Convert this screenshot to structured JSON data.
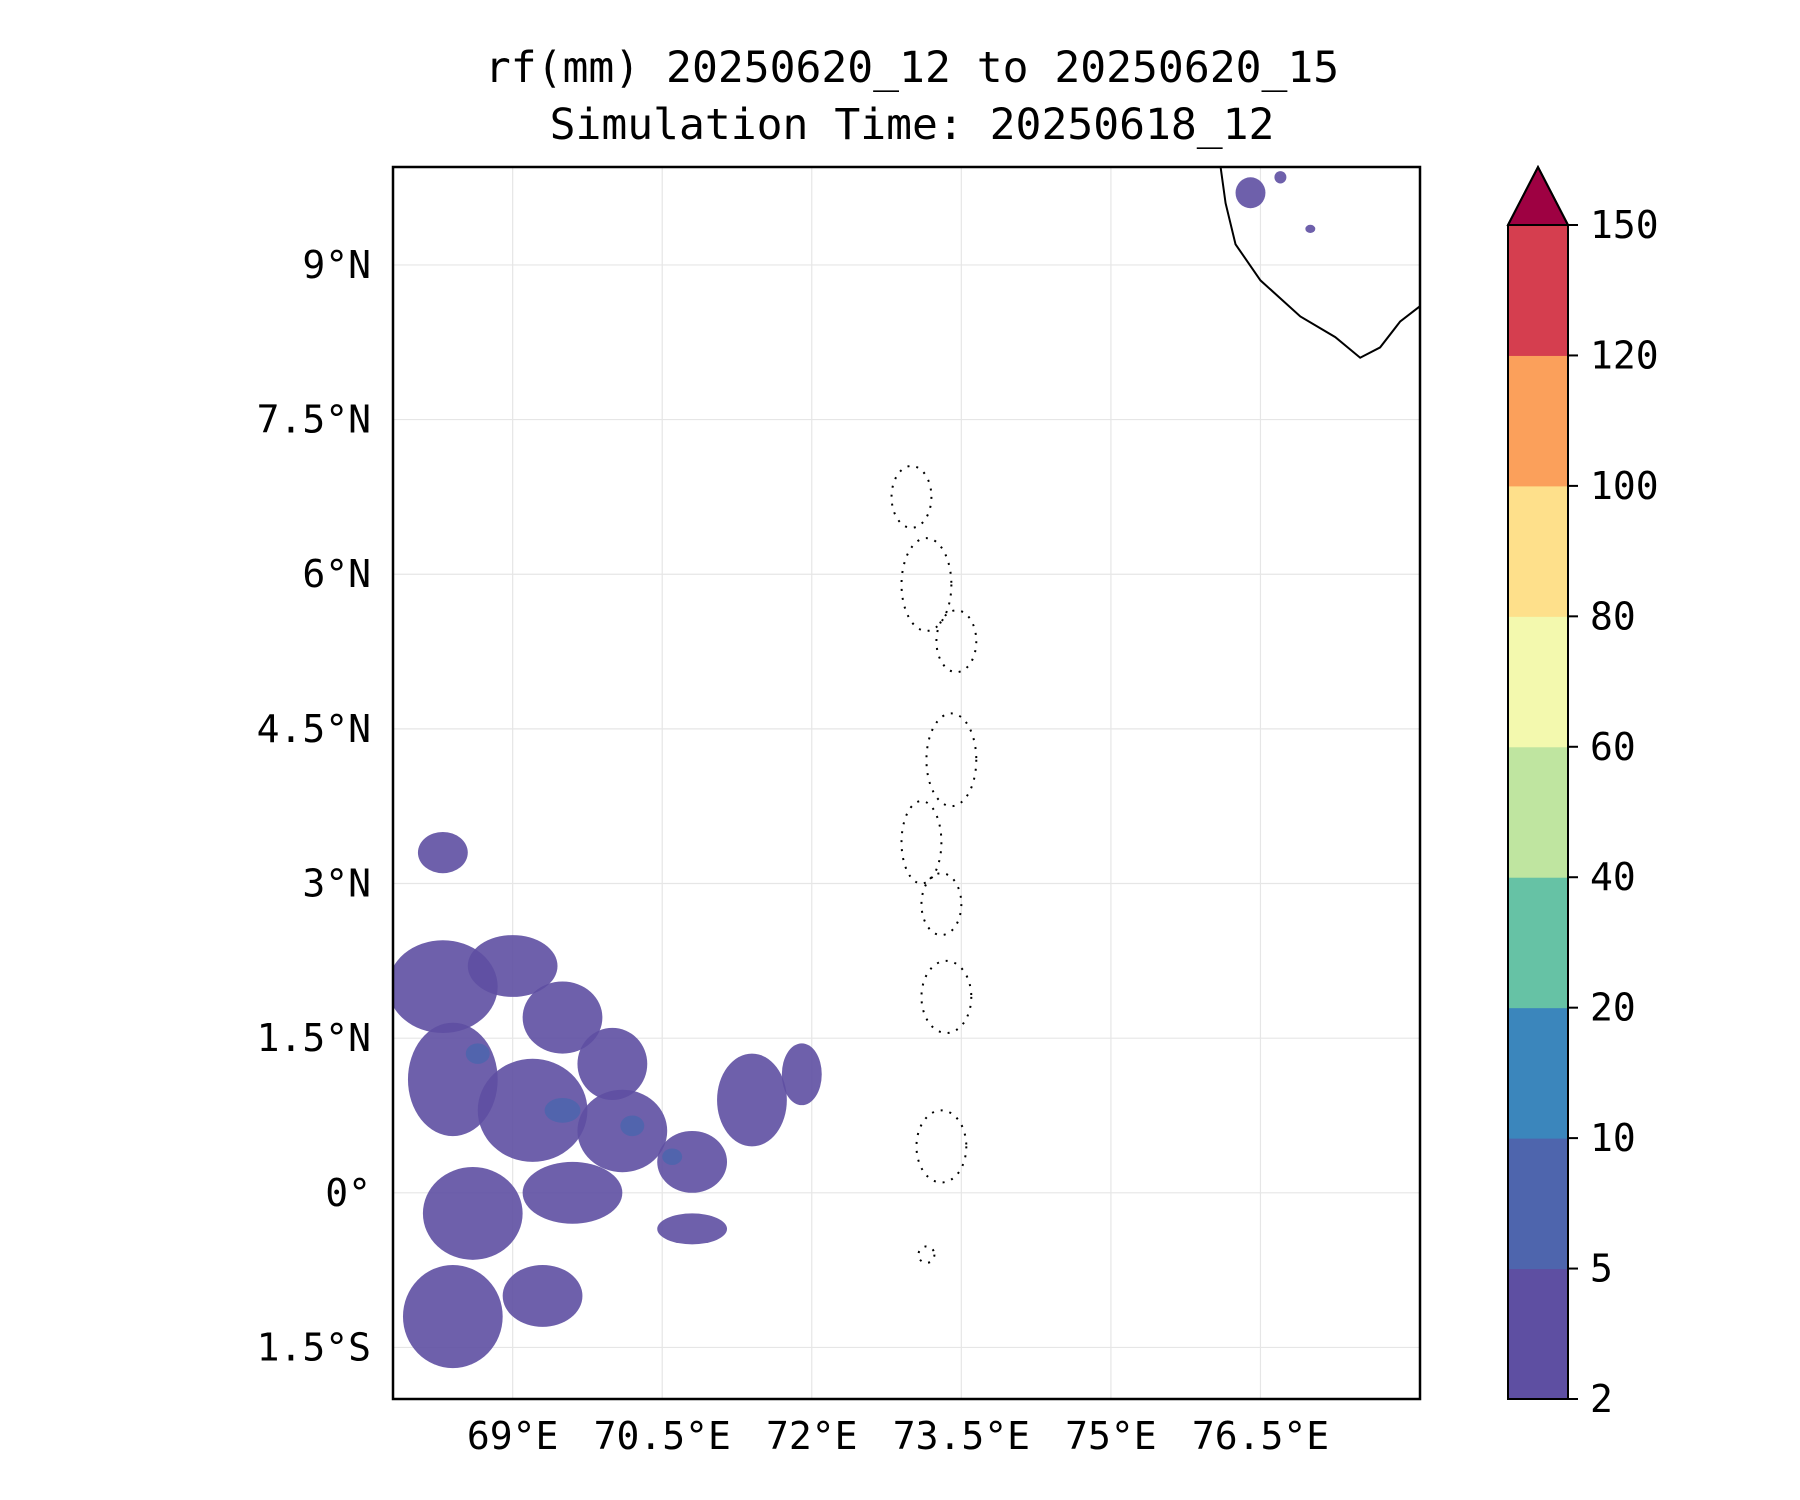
{
  "title": {
    "line1": "rf(mm) 20250620_12 to 20250620_15",
    "line2": "Simulation Time: 20250618_12"
  },
  "map": {
    "lon_range": [
      67.8,
      78.1
    ],
    "lat_range": [
      -2.0,
      9.95
    ],
    "x_ticks": [
      {
        "value": 69.0,
        "label": "69°E"
      },
      {
        "value": 70.5,
        "label": "70.5°E"
      },
      {
        "value": 72.0,
        "label": "72°E"
      },
      {
        "value": 73.5,
        "label": "73.5°E"
      },
      {
        "value": 75.0,
        "label": "75°E"
      },
      {
        "value": 76.5,
        "label": "76.5°E"
      }
    ],
    "y_ticks": [
      {
        "value": 9.0,
        "label": "9°N"
      },
      {
        "value": 7.5,
        "label": "7.5°N"
      },
      {
        "value": 6.0,
        "label": "6°N"
      },
      {
        "value": 4.5,
        "label": "4.5°N"
      },
      {
        "value": 3.0,
        "label": "3°N"
      },
      {
        "value": 1.5,
        "label": "1.5°N"
      },
      {
        "value": 0.0,
        "label": "0°"
      },
      {
        "value": -1.5,
        "label": "1.5°S"
      }
    ],
    "grid": true,
    "coastline_india": [
      [
        76.1,
        9.95
      ],
      [
        76.15,
        9.6
      ],
      [
        76.25,
        9.2
      ],
      [
        76.5,
        8.85
      ],
      [
        76.9,
        8.5
      ],
      [
        77.25,
        8.3
      ],
      [
        77.5,
        8.1
      ],
      [
        77.7,
        8.2
      ],
      [
        77.9,
        8.45
      ],
      [
        78.1,
        8.6
      ]
    ],
    "maldives_atolls": [
      {
        "lon": 73.0,
        "lat": 6.75,
        "rx": 0.2,
        "ry": 0.3
      },
      {
        "lon": 73.15,
        "lat": 5.9,
        "rx": 0.25,
        "ry": 0.45
      },
      {
        "lon": 73.45,
        "lat": 5.35,
        "rx": 0.2,
        "ry": 0.3
      },
      {
        "lon": 73.4,
        "lat": 4.2,
        "rx": 0.25,
        "ry": 0.45
      },
      {
        "lon": 73.1,
        "lat": 3.4,
        "rx": 0.2,
        "ry": 0.4
      },
      {
        "lon": 73.3,
        "lat": 2.8,
        "rx": 0.2,
        "ry": 0.3
      },
      {
        "lon": 73.35,
        "lat": 1.9,
        "rx": 0.25,
        "ry": 0.35
      },
      {
        "lon": 73.3,
        "lat": 0.45,
        "rx": 0.25,
        "ry": 0.35
      },
      {
        "lon": 73.15,
        "lat": -0.6,
        "rx": 0.08,
        "ry": 0.08
      }
    ],
    "rain_cells": [
      {
        "lon": 68.3,
        "lat": 2.0,
        "rx": 0.55,
        "ry": 0.45,
        "level": 1
      },
      {
        "lon": 69.0,
        "lat": 2.2,
        "rx": 0.45,
        "ry": 0.3,
        "level": 1
      },
      {
        "lon": 69.5,
        "lat": 1.7,
        "rx": 0.4,
        "ry": 0.35,
        "level": 1
      },
      {
        "lon": 70.0,
        "lat": 1.25,
        "rx": 0.35,
        "ry": 0.35,
        "level": 1
      },
      {
        "lon": 68.4,
        "lat": 1.1,
        "rx": 0.45,
        "ry": 0.55,
        "level": 1
      },
      {
        "lon": 69.2,
        "lat": 0.8,
        "rx": 0.55,
        "ry": 0.5,
        "level": 1
      },
      {
        "lon": 70.1,
        "lat": 0.6,
        "rx": 0.45,
        "ry": 0.4,
        "level": 1
      },
      {
        "lon": 70.8,
        "lat": 0.3,
        "rx": 0.35,
        "ry": 0.3,
        "level": 1
      },
      {
        "lon": 71.4,
        "lat": 0.9,
        "rx": 0.35,
        "ry": 0.45,
        "level": 1
      },
      {
        "lon": 71.9,
        "lat": 1.15,
        "rx": 0.2,
        "ry": 0.3,
        "level": 1
      },
      {
        "lon": 68.6,
        "lat": -0.2,
        "rx": 0.5,
        "ry": 0.45,
        "level": 1
      },
      {
        "lon": 69.6,
        "lat": 0.0,
        "rx": 0.5,
        "ry": 0.3,
        "level": 1
      },
      {
        "lon": 68.4,
        "lat": -1.2,
        "rx": 0.5,
        "ry": 0.5,
        "level": 1
      },
      {
        "lon": 69.3,
        "lat": -1.0,
        "rx": 0.4,
        "ry": 0.3,
        "level": 1
      },
      {
        "lon": 70.8,
        "lat": -0.35,
        "rx": 0.35,
        "ry": 0.15,
        "level": 1
      },
      {
        "lon": 68.3,
        "lat": 3.3,
        "rx": 0.25,
        "ry": 0.2,
        "level": 1
      },
      {
        "lon": 68.65,
        "lat": 1.35,
        "rx": 0.12,
        "ry": 0.1,
        "level": 2
      },
      {
        "lon": 69.5,
        "lat": 0.8,
        "rx": 0.18,
        "ry": 0.12,
        "level": 2
      },
      {
        "lon": 70.2,
        "lat": 0.65,
        "rx": 0.12,
        "ry": 0.1,
        "level": 2
      },
      {
        "lon": 70.6,
        "lat": 0.35,
        "rx": 0.1,
        "ry": 0.08,
        "level": 2
      },
      {
        "lon": 76.4,
        "lat": 9.7,
        "rx": 0.15,
        "ry": 0.15,
        "level": 1
      },
      {
        "lon": 76.7,
        "lat": 9.85,
        "rx": 0.06,
        "ry": 0.06,
        "level": 1
      },
      {
        "lon": 77.0,
        "lat": 9.35,
        "rx": 0.05,
        "ry": 0.04,
        "level": 1
      }
    ]
  },
  "colorbar": {
    "levels": [
      2,
      5,
      10,
      20,
      40,
      60,
      80,
      100,
      120,
      150
    ],
    "labels": [
      "2",
      "5",
      "10",
      "20",
      "40",
      "60",
      "80",
      "100",
      "120",
      "150"
    ],
    "colors": [
      "#5e4fa2",
      "#4e65ad",
      "#3b86bc",
      "#66c2a5",
      "#bfe5a0",
      "#f3f9ae",
      "#fee08b",
      "#fba05b",
      "#d53e4f"
    ],
    "extend_color": "#9e0142"
  },
  "colors": {
    "frame": "#000000",
    "grid": "#e6e6e6",
    "coast": "#000000"
  }
}
